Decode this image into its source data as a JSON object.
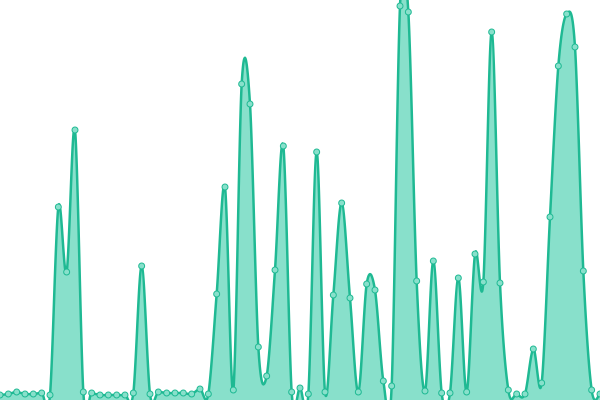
{
  "chart_data": {
    "type": "area",
    "color": "#1fb993",
    "fill": "#88e0cb",
    "values": [
      5,
      6,
      8,
      6,
      6,
      7,
      5,
      193,
      128,
      270,
      8,
      7,
      5,
      5,
      5,
      5,
      7,
      134,
      6,
      8,
      7,
      7,
      7,
      6,
      11,
      6,
      106,
      213,
      10,
      316,
      296,
      53,
      24,
      130,
      254,
      8,
      12,
      6,
      248,
      8,
      105,
      197,
      102,
      8,
      116,
      110,
      19,
      14,
      394,
      388,
      119,
      9,
      139,
      7,
      7,
      122,
      8,
      146,
      118,
      368,
      117,
      10,
      6,
      6,
      51,
      17,
      183,
      334,
      386,
      353,
      129,
      10,
      6
    ]
  }
}
